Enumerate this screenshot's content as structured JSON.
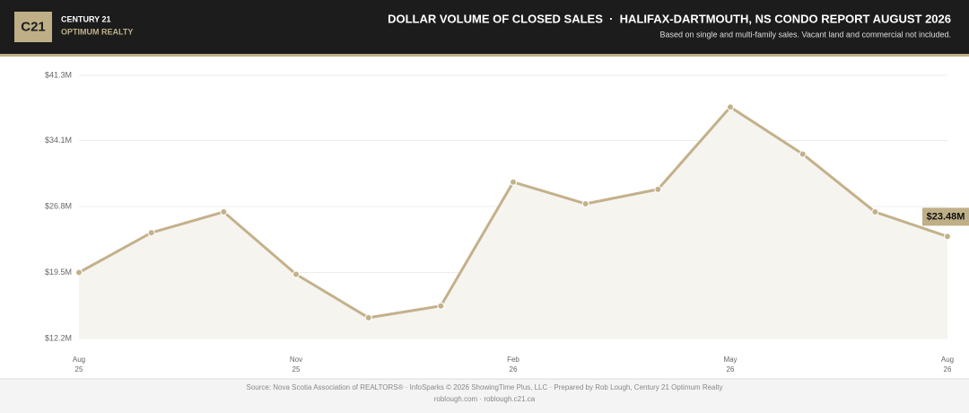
{
  "header": {
    "logo": "C21",
    "brand": "CENTURY 21",
    "office": "OPTIMUM REALTY",
    "title": "DOLLAR VOLUME OF CLOSED SALES  ·  HALIFAX-DARTMOUTH, NS CONDO REPORT AUGUST 2026",
    "subtitle": "Based on single and multi-family sales. Vacant land and commercial not included."
  },
  "chart_data": {
    "type": "line",
    "categories": [
      "Aug\n25",
      null,
      null,
      "Nov\n25",
      null,
      null,
      "Feb\n26",
      null,
      null,
      "May\n26",
      null,
      null,
      "Aug\n26"
    ],
    "values": [
      19.5,
      23.9,
      26.2,
      19.3,
      14.5,
      15.8,
      29.5,
      27.1,
      28.7,
      37.8,
      32.6,
      26.2,
      23.48
    ],
    "value_labels": [
      null,
      null,
      null,
      null,
      null,
      null,
      null,
      null,
      null,
      null,
      null,
      null,
      "$23.48M"
    ],
    "color": "#c3b18b",
    "ylim": [
      12.2,
      41.3
    ],
    "yticks": [
      {
        "value": 12.2,
        "label": "$12.2M"
      },
      {
        "value": 19.5,
        "label": "$19.5M"
      },
      {
        "value": 26.8,
        "label": "$26.8M"
      },
      {
        "value": 34.1,
        "label": "$34.1M"
      },
      {
        "value": 41.3,
        "label": "$41.3M"
      }
    ],
    "grid": true
  },
  "footer": {
    "source": "Source: Nova Scotia Association of REALTORS® · InfoSparks © 2026 ShowingTime Plus, LLC · Prepared by Rob Lough, Century 21 Optimum Realty",
    "links": "roblough.com · roblough.c21.ca"
  }
}
